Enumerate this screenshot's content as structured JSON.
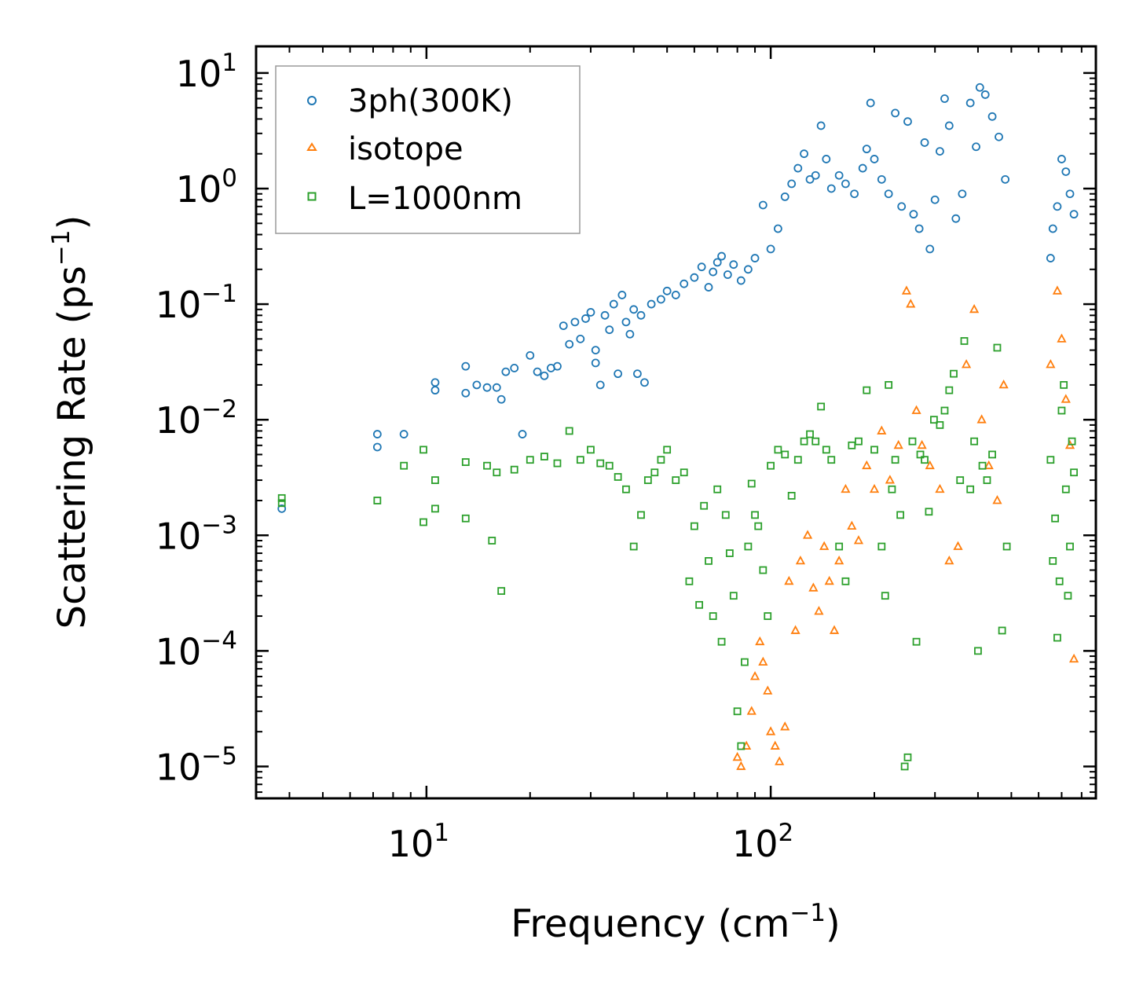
{
  "chart_data": {
    "type": "scatter",
    "title": "",
    "xlabel": {
      "prefix": "Frequency (cm",
      "sup": "−1",
      "suffix": ")"
    },
    "ylabel": {
      "prefix": "Scattering Rate (ps",
      "sup": "−1",
      "suffix": ")"
    },
    "xscale": "log",
    "yscale": "log",
    "xlim": [
      3.2,
      880
    ],
    "ylim": [
      5.3e-06,
      17
    ],
    "xticks": [
      {
        "value": 10,
        "base": "10",
        "exp": "1"
      },
      {
        "value": 100,
        "base": "10",
        "exp": "2"
      }
    ],
    "yticks": [
      {
        "value": 1e-05,
        "base": "10",
        "exp": "−5"
      },
      {
        "value": 0.0001,
        "base": "10",
        "exp": "−4"
      },
      {
        "value": 0.001,
        "base": "10",
        "exp": "−3"
      },
      {
        "value": 0.01,
        "base": "10",
        "exp": "−2"
      },
      {
        "value": 0.1,
        "base": "10",
        "exp": "−1"
      },
      {
        "value": 1,
        "base": "10",
        "exp": "0"
      },
      {
        "value": 10,
        "base": "10",
        "exp": "1"
      }
    ],
    "grid": false,
    "legend_position": "top-left",
    "series": [
      {
        "name": "3ph(300K)",
        "marker": "circle",
        "color": "#1f77b4",
        "points": [
          [
            3.8,
            0.0017
          ],
          [
            7.2,
            0.0075
          ],
          [
            7.2,
            0.0058
          ],
          [
            8.6,
            0.0075
          ],
          [
            10.6,
            0.021
          ],
          [
            10.6,
            0.018
          ],
          [
            13,
            0.029
          ],
          [
            13,
            0.017
          ],
          [
            14,
            0.02
          ],
          [
            15,
            0.019
          ],
          [
            16,
            0.019
          ],
          [
            16.5,
            0.015
          ],
          [
            17,
            0.026
          ],
          [
            18,
            0.028
          ],
          [
            19,
            0.0075
          ],
          [
            20,
            0.036
          ],
          [
            21,
            0.026
          ],
          [
            22,
            0.024
          ],
          [
            23,
            0.028
          ],
          [
            24,
            0.029
          ],
          [
            25,
            0.065
          ],
          [
            26,
            0.045
          ],
          [
            27,
            0.07
          ],
          [
            28,
            0.05
          ],
          [
            29,
            0.075
          ],
          [
            30,
            0.085
          ],
          [
            31,
            0.04
          ],
          [
            31,
            0.031
          ],
          [
            32,
            0.02
          ],
          [
            33,
            0.08
          ],
          [
            34,
            0.06
          ],
          [
            35,
            0.1
          ],
          [
            36,
            0.025
          ],
          [
            37,
            0.12
          ],
          [
            38,
            0.07
          ],
          [
            39,
            0.055
          ],
          [
            40,
            0.09
          ],
          [
            41,
            0.025
          ],
          [
            42,
            0.08
          ],
          [
            43,
            0.021
          ],
          [
            45,
            0.1
          ],
          [
            48,
            0.11
          ],
          [
            50,
            0.13
          ],
          [
            53,
            0.12
          ],
          [
            56,
            0.15
          ],
          [
            60,
            0.17
          ],
          [
            63,
            0.21
          ],
          [
            66,
            0.14
          ],
          [
            68,
            0.19
          ],
          [
            70,
            0.23
          ],
          [
            72,
            0.26
          ],
          [
            75,
            0.18
          ],
          [
            78,
            0.22
          ],
          [
            82,
            0.16
          ],
          [
            86,
            0.2
          ],
          [
            90,
            0.25
          ],
          [
            95,
            0.72
          ],
          [
            100,
            0.3
          ],
          [
            105,
            0.45
          ],
          [
            110,
            0.85
          ],
          [
            115,
            1.1
          ],
          [
            120,
            1.5
          ],
          [
            125,
            2.0
          ],
          [
            130,
            1.2
          ],
          [
            135,
            1.3
          ],
          [
            140,
            3.5
          ],
          [
            145,
            1.8
          ],
          [
            150,
            1.0
          ],
          [
            158,
            1.3
          ],
          [
            165,
            1.1
          ],
          [
            175,
            0.9
          ],
          [
            185,
            1.5
          ],
          [
            190,
            2.2
          ],
          [
            195,
            5.5
          ],
          [
            200,
            1.8
          ],
          [
            210,
            1.2
          ],
          [
            220,
            0.9
          ],
          [
            230,
            4.5
          ],
          [
            240,
            0.7
          ],
          [
            250,
            3.8
          ],
          [
            260,
            0.6
          ],
          [
            270,
            0.45
          ],
          [
            280,
            2.5
          ],
          [
            290,
            0.3
          ],
          [
            300,
            0.8
          ],
          [
            310,
            2.1
          ],
          [
            320,
            6.0
          ],
          [
            330,
            3.5
          ],
          [
            345,
            0.55
          ],
          [
            360,
            0.9
          ],
          [
            380,
            5.5
          ],
          [
            395,
            2.3
          ],
          [
            405,
            7.5
          ],
          [
            420,
            6.5
          ],
          [
            440,
            4.2
          ],
          [
            460,
            2.8
          ],
          [
            480,
            1.2
          ],
          [
            650,
            0.25
          ],
          [
            660,
            0.45
          ],
          [
            680,
            0.7
          ],
          [
            700,
            1.8
          ],
          [
            720,
            1.4
          ],
          [
            740,
            0.9
          ],
          [
            760,
            0.6
          ]
        ]
      },
      {
        "name": "isotope",
        "marker": "triangle",
        "color": "#ff7f0e",
        "points": [
          [
            80,
            1.2e-05
          ],
          [
            82,
            1e-05
          ],
          [
            85,
            1.5e-05
          ],
          [
            88,
            3e-05
          ],
          [
            90,
            6e-05
          ],
          [
            93,
            0.00012
          ],
          [
            95,
            8e-05
          ],
          [
            98,
            4.5e-05
          ],
          [
            100,
            2e-05
          ],
          [
            103,
            1.5e-05
          ],
          [
            106,
            1.1e-05
          ],
          [
            110,
            2.2e-05
          ],
          [
            113,
            0.0004
          ],
          [
            118,
            0.00015
          ],
          [
            122,
            0.0006
          ],
          [
            128,
            0.001
          ],
          [
            133,
            0.00035
          ],
          [
            138,
            0.00022
          ],
          [
            143,
            0.0008
          ],
          [
            148,
            0.0004
          ],
          [
            153,
            0.00015
          ],
          [
            158,
            0.0006
          ],
          [
            165,
            0.0025
          ],
          [
            172,
            0.0012
          ],
          [
            180,
            0.0009
          ],
          [
            190,
            0.004
          ],
          [
            200,
            0.0025
          ],
          [
            210,
            0.008
          ],
          [
            222,
            0.003
          ],
          [
            235,
            0.006
          ],
          [
            248,
            0.13
          ],
          [
            255,
            0.1
          ],
          [
            265,
            0.012
          ],
          [
            275,
            0.006
          ],
          [
            290,
            0.004
          ],
          [
            310,
            0.0025
          ],
          [
            330,
            0.0006
          ],
          [
            350,
            0.0008
          ],
          [
            370,
            0.03
          ],
          [
            390,
            0.09
          ],
          [
            410,
            0.01
          ],
          [
            430,
            0.004
          ],
          [
            455,
            0.002
          ],
          [
            475,
            0.02
          ],
          [
            650,
            0.03
          ],
          [
            680,
            0.13
          ],
          [
            700,
            0.05
          ],
          [
            720,
            0.015
          ],
          [
            740,
            0.006
          ],
          [
            760,
            8.5e-05
          ]
        ]
      },
      {
        "name": "L=1000nm",
        "marker": "square",
        "color": "#2ca02c",
        "points": [
          [
            3.8,
            0.0021
          ],
          [
            3.8,
            0.0019
          ],
          [
            7.2,
            0.002
          ],
          [
            8.6,
            0.004
          ],
          [
            9.8,
            0.0055
          ],
          [
            9.8,
            0.0013
          ],
          [
            10.6,
            0.003
          ],
          [
            10.6,
            0.0017
          ],
          [
            13,
            0.0043
          ],
          [
            13,
            0.0014
          ],
          [
            15,
            0.004
          ],
          [
            15.5,
            0.0009
          ],
          [
            16,
            0.0035
          ],
          [
            16.5,
            0.00033
          ],
          [
            18,
            0.0037
          ],
          [
            20,
            0.0045
          ],
          [
            22,
            0.0048
          ],
          [
            24,
            0.0042
          ],
          [
            26,
            0.008
          ],
          [
            28,
            0.0045
          ],
          [
            30,
            0.0055
          ],
          [
            32,
            0.0042
          ],
          [
            34,
            0.004
          ],
          [
            36,
            0.0032
          ],
          [
            38,
            0.0025
          ],
          [
            40,
            0.0008
          ],
          [
            42,
            0.0015
          ],
          [
            44,
            0.003
          ],
          [
            46,
            0.0035
          ],
          [
            48,
            0.0045
          ],
          [
            50,
            0.0055
          ],
          [
            53,
            0.003
          ],
          [
            56,
            0.0035
          ],
          [
            58,
            0.0004
          ],
          [
            60,
            0.0012
          ],
          [
            62,
            0.00025
          ],
          [
            64,
            0.0018
          ],
          [
            66,
            0.0006
          ],
          [
            68,
            0.0002
          ],
          [
            70,
            0.0025
          ],
          [
            72,
            0.00012
          ],
          [
            74,
            0.0015
          ],
          [
            76,
            0.0007
          ],
          [
            78,
            0.0003
          ],
          [
            80,
            3e-05
          ],
          [
            82,
            1.5e-05
          ],
          [
            84,
            8e-05
          ],
          [
            86,
            0.0008
          ],
          [
            88,
            0.0028
          ],
          [
            90,
            0.0015
          ],
          [
            92,
            0.0012
          ],
          [
            95,
            0.0005
          ],
          [
            98,
            0.0002
          ],
          [
            100,
            0.004
          ],
          [
            105,
            0.0055
          ],
          [
            110,
            0.005
          ],
          [
            115,
            0.0022
          ],
          [
            120,
            0.0045
          ],
          [
            125,
            0.0065
          ],
          [
            130,
            0.0075
          ],
          [
            135,
            0.0065
          ],
          [
            140,
            0.013
          ],
          [
            145,
            0.0055
          ],
          [
            150,
            0.0045
          ],
          [
            158,
            0.0008
          ],
          [
            165,
            0.0004
          ],
          [
            172,
            0.006
          ],
          [
            180,
            0.0065
          ],
          [
            190,
            0.018
          ],
          [
            200,
            0.0055
          ],
          [
            210,
            0.0008
          ],
          [
            215,
            0.0003
          ],
          [
            220,
            0.02
          ],
          [
            225,
            0.0025
          ],
          [
            230,
            0.0045
          ],
          [
            238,
            0.0015
          ],
          [
            245,
            1e-05
          ],
          [
            250,
            1.2e-05
          ],
          [
            258,
            0.0065
          ],
          [
            265,
            0.00012
          ],
          [
            272,
            0.005
          ],
          [
            280,
            0.0045
          ],
          [
            288,
            0.0016
          ],
          [
            298,
            0.01
          ],
          [
            310,
            0.009
          ],
          [
            320,
            0.012
          ],
          [
            330,
            0.018
          ],
          [
            340,
            0.025
          ],
          [
            355,
            0.003
          ],
          [
            365,
            0.048
          ],
          [
            380,
            0.0025
          ],
          [
            390,
            0.0065
          ],
          [
            400,
            0.0001
          ],
          [
            412,
            0.004
          ],
          [
            425,
            0.003
          ],
          [
            440,
            0.005
          ],
          [
            455,
            0.042
          ],
          [
            470,
            0.00015
          ],
          [
            485,
            0.0008
          ],
          [
            650,
            0.0045
          ],
          [
            660,
            0.0006
          ],
          [
            670,
            0.0014
          ],
          [
            680,
            0.00013
          ],
          [
            690,
            0.0004
          ],
          [
            700,
            0.012
          ],
          [
            710,
            0.02
          ],
          [
            720,
            0.0025
          ],
          [
            730,
            0.0003
          ],
          [
            740,
            0.0008
          ],
          [
            750,
            0.0065
          ],
          [
            760,
            0.0035
          ]
        ]
      }
    ]
  }
}
